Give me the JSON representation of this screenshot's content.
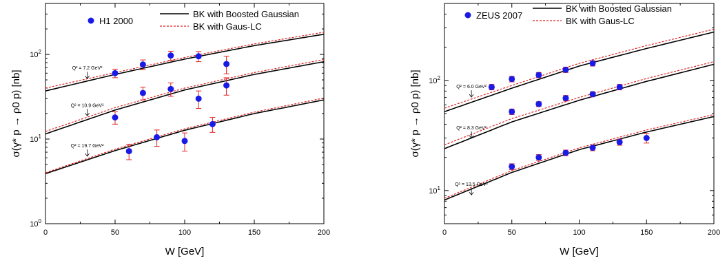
{
  "chart_data": [
    {
      "type": "scatter",
      "xlabel": "W [GeV]",
      "ylabel": "σ(γ* p → ρ0 p) [nb]",
      "xlim": [
        0,
        200
      ],
      "ylim": [
        1,
        400
      ],
      "yscale": "log",
      "xticks": [
        "0",
        "50",
        "100",
        "150",
        "200"
      ],
      "yticks": [
        {
          "base": "10",
          "exp": "0",
          "value": 1
        },
        {
          "base": "10",
          "exp": "1",
          "value": 10
        },
        {
          "base": "10",
          "exp": "2",
          "value": 100
        }
      ],
      "legend": {
        "placement": "top",
        "data_label": "H1 2000",
        "line1_label": "BK with Boosted Gaussian",
        "line2_label": "BK with Gaus-LC"
      },
      "annotations": [
        {
          "text": "Q² = 7.2 GeV²",
          "x": 30,
          "y": 66
        },
        {
          "text": "Q² = 10.9 GeV²",
          "x": 30,
          "y": 24
        },
        {
          "text": "Q² = 19.7 GeV²",
          "x": 30,
          "y": 8
        }
      ],
      "series": [
        {
          "points": [
            {
              "x": 50,
              "y": 60,
              "err": 7
            },
            {
              "x": 70,
              "y": 76,
              "err": 10
            },
            {
              "x": 90,
              "y": 97,
              "err": 12
            },
            {
              "x": 110,
              "y": 95,
              "err": 13
            },
            {
              "x": 130,
              "y": 77,
              "err": 18
            }
          ],
          "bg": [
            [
              0,
              37
            ],
            [
              50,
              58
            ],
            [
              100,
              88
            ],
            [
              150,
              127
            ],
            [
              200,
              173
            ]
          ],
          "lc": [
            [
              0,
              40
            ],
            [
              50,
              61
            ],
            [
              100,
              92
            ],
            [
              150,
              133
            ],
            [
              200,
              183
            ]
          ]
        },
        {
          "points": [
            {
              "x": 50,
              "y": 18,
              "err": 3
            },
            {
              "x": 70,
              "y": 35,
              "err": 6
            },
            {
              "x": 90,
              "y": 39,
              "err": 7
            },
            {
              "x": 110,
              "y": 30,
              "err": 7
            },
            {
              "x": 130,
              "y": 43,
              "err": 10
            }
          ],
          "bg": [
            [
              0,
              11.5
            ],
            [
              50,
              22
            ],
            [
              100,
              38
            ],
            [
              150,
              58
            ],
            [
              200,
              82
            ]
          ],
          "lc": [
            [
              0,
              12.3
            ],
            [
              50,
              23.5
            ],
            [
              100,
              40
            ],
            [
              150,
              61
            ],
            [
              200,
              87
            ]
          ]
        },
        {
          "points": [
            {
              "x": 60,
              "y": 7.2,
              "err": 1.5
            },
            {
              "x": 80,
              "y": 10.5,
              "err": 2.3
            },
            {
              "x": 100,
              "y": 9.5,
              "err": 2.3
            },
            {
              "x": 120,
              "y": 15,
              "err": 3
            }
          ],
          "bg": [
            [
              0,
              3.9
            ],
            [
              50,
              7.3
            ],
            [
              100,
              12.7
            ],
            [
              150,
              20
            ],
            [
              200,
              29
            ]
          ],
          "lc": [
            [
              0,
              4.0
            ],
            [
              50,
              7.6
            ],
            [
              100,
              13.2
            ],
            [
              150,
              20.8
            ],
            [
              200,
              30.5
            ]
          ]
        }
      ]
    },
    {
      "type": "scatter",
      "xlabel": "W [GeV]",
      "ylabel": "σ(γ* p → ρ0 p) [nb]",
      "xlim": [
        0,
        200
      ],
      "ylim": [
        5,
        500
      ],
      "yscale": "log",
      "xticks": [
        "0",
        "50",
        "100",
        "150",
        "200"
      ],
      "yticks": [
        {
          "base": "10",
          "exp": "1",
          "value": 10
        },
        {
          "base": "10",
          "exp": "2",
          "value": 100
        }
      ],
      "legend": {
        "placement": "top",
        "data_label": "ZEUS 2007",
        "line1_label": "BK with Boosted Gaussian",
        "line2_label": "BK with Gaus-LC"
      },
      "annotations": [
        {
          "text": "Q² = 6.0 GeV²",
          "x": 20,
          "y": 85
        },
        {
          "text": "Q² = 8.3 GeV²",
          "x": 20,
          "y": 36
        },
        {
          "text": "Q² = 13.5 GeV²",
          "x": 20,
          "y": 11
        }
      ],
      "series": [
        {
          "points": [
            {
              "x": 35,
              "y": 87,
              "err": 5
            },
            {
              "x": 50,
              "y": 103,
              "err": 6
            },
            {
              "x": 70,
              "y": 112,
              "err": 6
            },
            {
              "x": 90,
              "y": 125,
              "err": 7
            },
            {
              "x": 110,
              "y": 143,
              "err": 8
            }
          ],
          "bg": [
            [
              0,
              52
            ],
            [
              50,
              85
            ],
            [
              100,
              135
            ],
            [
              150,
              195
            ],
            [
              200,
              275
            ]
          ],
          "lc": [
            [
              0,
              56
            ],
            [
              50,
              90
            ],
            [
              100,
              143
            ],
            [
              150,
              207
            ],
            [
              200,
              292
            ]
          ]
        },
        {
          "points": [
            {
              "x": 50,
              "y": 52,
              "err": 3
            },
            {
              "x": 70,
              "y": 61,
              "err": 3
            },
            {
              "x": 90,
              "y": 69,
              "err": 4
            },
            {
              "x": 110,
              "y": 75,
              "err": 4
            },
            {
              "x": 130,
              "y": 87,
              "err": 5
            }
          ],
          "bg": [
            [
              0,
              24
            ],
            [
              50,
              42
            ],
            [
              100,
              66
            ],
            [
              150,
              98
            ],
            [
              200,
              140
            ]
          ],
          "lc": [
            [
              0,
              26
            ],
            [
              50,
              45
            ],
            [
              100,
              70
            ],
            [
              150,
              104
            ],
            [
              200,
              148
            ]
          ]
        },
        {
          "points": [
            {
              "x": 50,
              "y": 16.5,
              "err": 1
            },
            {
              "x": 70,
              "y": 20,
              "err": 1.2
            },
            {
              "x": 90,
              "y": 22,
              "err": 1.3
            },
            {
              "x": 110,
              "y": 24.5,
              "err": 1.5
            },
            {
              "x": 130,
              "y": 27.5,
              "err": 1.7
            },
            {
              "x": 150,
              "y": 30,
              "err": 3
            }
          ],
          "bg": [
            [
              0,
              8.2
            ],
            [
              50,
              14.6
            ],
            [
              100,
              23.5
            ],
            [
              150,
              34
            ],
            [
              200,
              47
            ]
          ],
          "lc": [
            [
              0,
              8.5
            ],
            [
              50,
              15.2
            ],
            [
              100,
              24.4
            ],
            [
              150,
              35.5
            ],
            [
              200,
              49
            ]
          ]
        }
      ]
    }
  ],
  "colors": {
    "marker": "#1a1ae6",
    "error_bar": "#e02020",
    "line_bg": "#000000",
    "line_lc": "#e02020",
    "axis": "#000000"
  }
}
